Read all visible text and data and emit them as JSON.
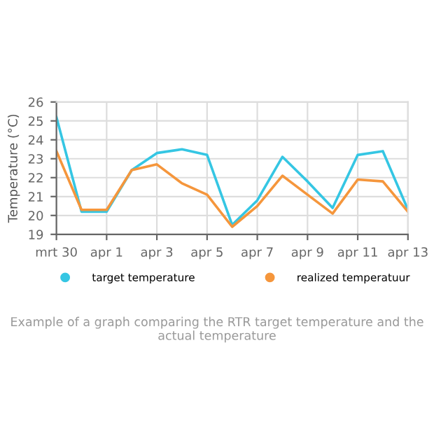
{
  "chart_data": {
    "type": "line",
    "categories": [
      "mrt 30",
      null,
      "apr 1",
      null,
      "apr 3",
      null,
      "apr 5",
      null,
      "apr 7",
      null,
      "apr 9",
      null,
      "apr 11",
      null,
      "apr 13"
    ],
    "ylabel": "Temperature (°C)",
    "ylim": [
      19,
      26
    ],
    "yticks": [
      19,
      20,
      21,
      22,
      23,
      24,
      25,
      26
    ],
    "series": [
      {
        "name": "target temperature",
        "color": "#35c6e3",
        "values": [
          25.2,
          20.2,
          20.2,
          22.4,
          23.3,
          23.5,
          23.2,
          19.5,
          20.8,
          23.1,
          21.8,
          20.4,
          23.2,
          23.4,
          20.3
        ]
      },
      {
        "name": "realized temperatuur",
        "color": "#f5963c",
        "values": [
          23.4,
          20.3,
          20.3,
          22.4,
          22.7,
          21.7,
          21.1,
          19.4,
          20.5,
          22.1,
          21.1,
          20.1,
          21.9,
          21.8,
          20.2
        ]
      }
    ],
    "grid": true,
    "legend": "bottom",
    "marker": "none",
    "line_style": "solid",
    "annotations": [
      "Example of a graph comparing the RTR target temperature and the actual temperature"
    ]
  }
}
